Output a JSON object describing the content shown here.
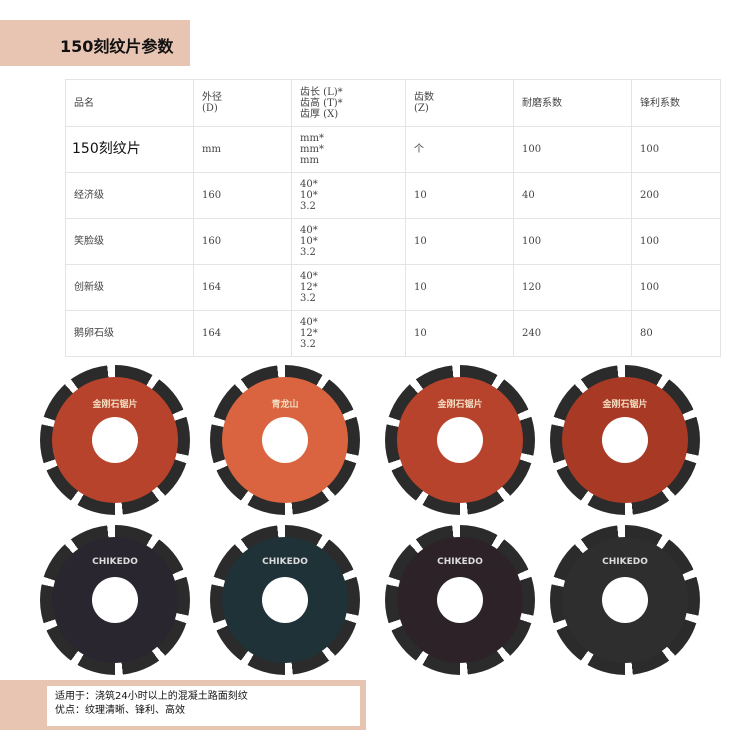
{
  "title": "150刻纹片参数",
  "table": {
    "headers": [
      "品名",
      "外径\n(D)",
      "齿长 (L)*\n齿高 (T)*\n齿厚 (X)",
      "齿数\n(Z)",
      "耐磨系数",
      "锋利系数"
    ],
    "rows": [
      [
        "150刻纹片",
        "mm",
        "mm*\nmm*\nmm",
        "个",
        "100",
        "100"
      ],
      [
        "经济级",
        "160",
        "40*\n10*\n3.2",
        "10",
        "40",
        "200"
      ],
      [
        "笑脸级",
        "160",
        "40*\n10*\n3.2",
        "10",
        "100",
        "100"
      ],
      [
        "创新级",
        "164",
        "40*\n12*\n3.2",
        "10",
        "120",
        "100"
      ],
      [
        "鹅卵石级",
        "164",
        "40*\n12*\n3.2",
        "10",
        "240",
        "80"
      ]
    ]
  },
  "blades": [
    {
      "label": "金刚石锯片",
      "face": "#b8432c"
    },
    {
      "label": "青龙山",
      "face": "#d9643f"
    },
    {
      "label": "金刚石锯片",
      "face": "#b8432c"
    },
    {
      "label": "金刚石锯片",
      "face": "#a83a25"
    },
    {
      "label": "CHIKEDO",
      "face": "#2a2630"
    },
    {
      "label": "CHIKEDO",
      "face": "#1f3238"
    },
    {
      "label": "CHIKEDO",
      "face": "#2c2228"
    },
    {
      "label": "CHIKEDO",
      "face": "#2e2e2e"
    }
  ],
  "footer": {
    "line1": "适用于：浇筑24小时以上的混凝土路面刻纹",
    "line2": "优点：纹理清晰、锋利、高效"
  }
}
